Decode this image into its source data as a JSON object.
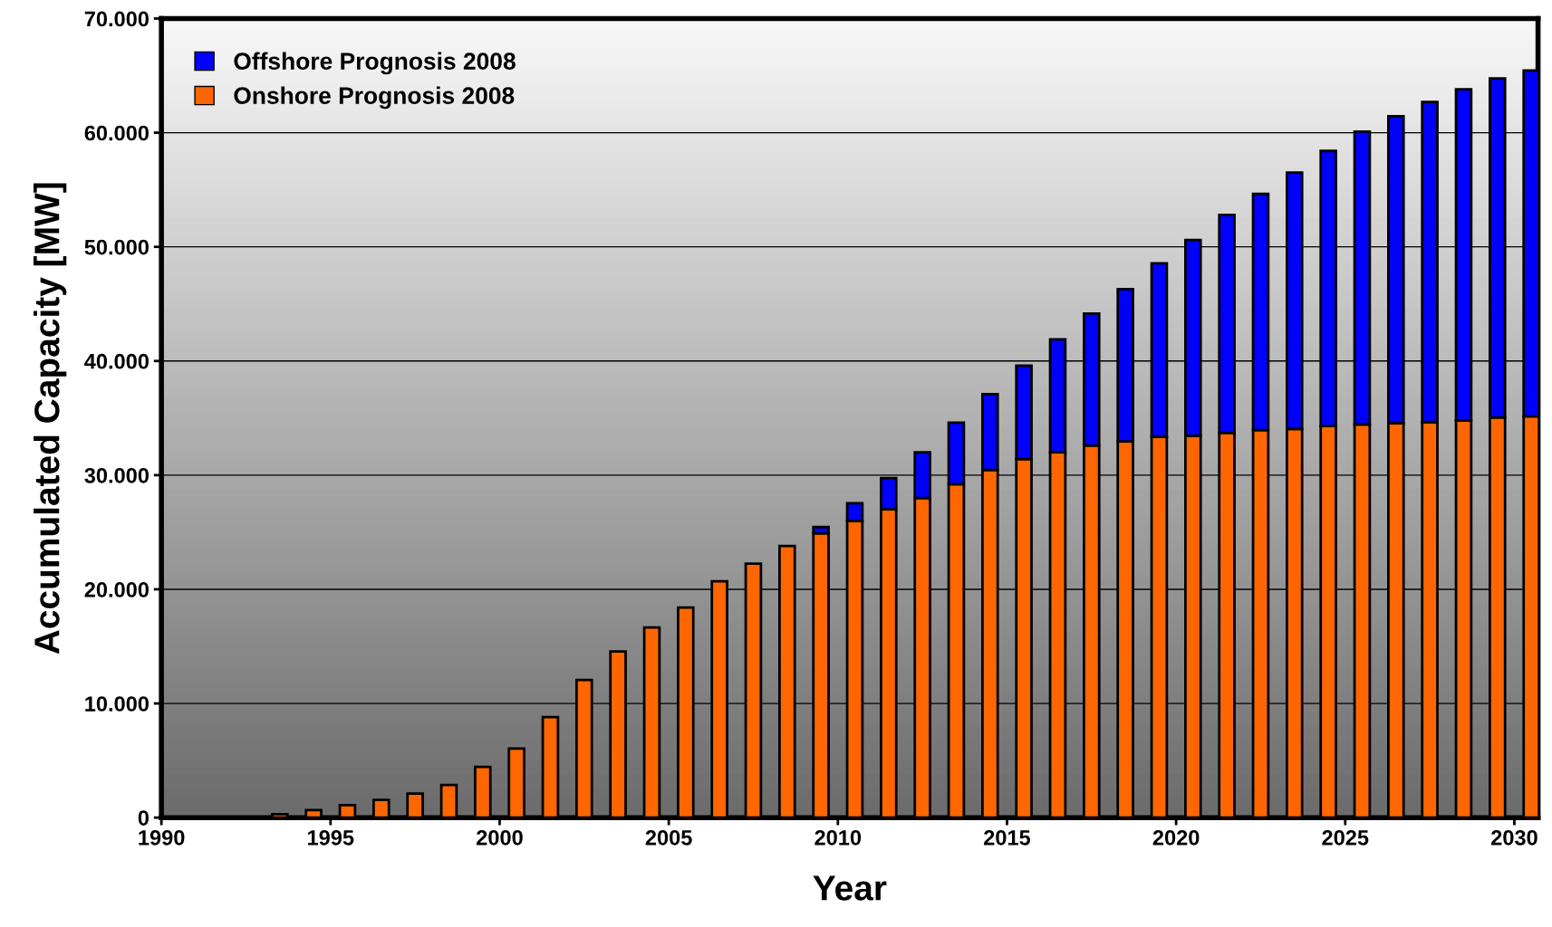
{
  "chart_data": {
    "type": "bar",
    "stacked": true,
    "xlabel": "Year",
    "ylabel": "Accumulated Capacity [MW]",
    "x": [
      1993.5,
      1994.5,
      1995.5,
      1996.5,
      1997.5,
      1998.5,
      1999.5,
      2000.5,
      2001.5,
      2002.5,
      2003.5,
      2004.5,
      2005.5,
      2006.5,
      2007.5,
      2008.5,
      2009.5,
      2010.5,
      2011.5,
      2012.5,
      2013.5,
      2014.5,
      2015.5,
      2016.5,
      2017.5,
      2018.5,
      2019.5,
      2020.5,
      2021.5,
      2022.5,
      2023.5,
      2024.5,
      2025.5,
      2026.5,
      2027.5,
      2028.5,
      2029.5,
      2030.5
    ],
    "series": [
      {
        "name": "Onshore Prognosis 2008",
        "color": "#ff6600",
        "values": [
          300,
          650,
          1100,
          1550,
          2100,
          2850,
          4450,
          6050,
          8800,
          12050,
          14550,
          16650,
          18400,
          20700,
          22250,
          23800,
          24900,
          26000,
          27000,
          28000,
          29200,
          30450,
          31400,
          32000,
          32600,
          32950,
          33350,
          33450,
          33700,
          33950,
          34050,
          34300,
          34450,
          34550,
          34650,
          34800,
          35050,
          35150
        ]
      },
      {
        "name": "Offshore Prognosis 2008",
        "color": "#0000ff",
        "values": [
          null,
          null,
          null,
          null,
          null,
          null,
          null,
          null,
          null,
          null,
          null,
          null,
          null,
          null,
          null,
          null,
          550,
          1550,
          2750,
          4000,
          5400,
          6650,
          8200,
          9900,
          11550,
          13350,
          15200,
          17150,
          19100,
          20700,
          22450,
          24100,
          25650,
          26900,
          28050,
          29000,
          29700,
          30300
        ]
      }
    ],
    "xlim": [
      1990,
      2030.7
    ],
    "xticks": [
      1990,
      1995,
      2000,
      2005,
      2010,
      2015,
      2020,
      2025,
      2030
    ],
    "ylim": [
      0,
      70000
    ],
    "yticks": [
      0,
      {
        "value": 10000,
        "label": "10.000"
      },
      {
        "value": 20000,
        "label": "20.000"
      },
      {
        "value": 30000,
        "label": "30.000"
      },
      {
        "value": 40000,
        "label": "40.000"
      },
      {
        "value": 50000,
        "label": "50.000"
      },
      {
        "value": 60000,
        "label": "60.000"
      },
      {
        "value": 70000,
        "label": "70.000"
      }
    ],
    "grid": "y",
    "legend": "top left"
  }
}
